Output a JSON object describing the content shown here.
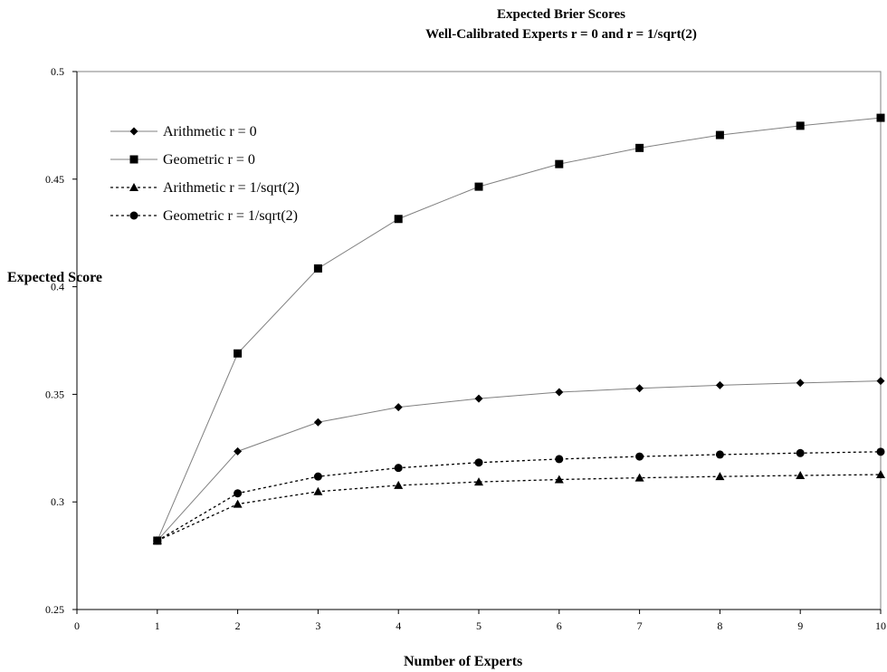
{
  "chart_data": {
    "type": "line",
    "title": "Expected Brier Scores",
    "subtitle": "Well-Calibrated Experts r = 0 and r = 1/sqrt(2)",
    "xlabel": "Number of Experts",
    "ylabel": "Expected Score",
    "xlim": [
      0,
      10
    ],
    "ylim": [
      0.25,
      0.5
    ],
    "x_ticks": [
      "0",
      "1",
      "2",
      "3",
      "4",
      "5",
      "6",
      "7",
      "8",
      "9",
      "10"
    ],
    "y_ticks": [
      "0.25",
      "0.3",
      "0.35",
      "0.4",
      "0.45",
      "0.5"
    ],
    "grid": false,
    "legend_position": "top-left",
    "x": [
      1,
      2,
      3,
      4,
      5,
      6,
      7,
      8,
      9,
      10
    ],
    "series": [
      {
        "name": "Arithmetic r = 0",
        "marker": "diamond",
        "style": "solid",
        "color": "#808080",
        "values": [
          0.282,
          0.3235,
          0.337,
          0.344,
          0.348,
          0.351,
          0.3528,
          0.3542,
          0.3553,
          0.3562
        ]
      },
      {
        "name": "Geometric r = 0",
        "marker": "square",
        "style": "solid",
        "color": "#808080",
        "values": [
          0.282,
          0.369,
          0.4085,
          0.4315,
          0.4465,
          0.457,
          0.4645,
          0.4705,
          0.4748,
          0.4785
        ]
      },
      {
        "name": "Arithmetic r = 1/sqrt(2)",
        "marker": "triangle",
        "style": "dotted",
        "color": "#000000",
        "values": [
          0.282,
          0.299,
          0.3048,
          0.3077,
          0.3093,
          0.3104,
          0.3112,
          0.3118,
          0.3123,
          0.3127
        ]
      },
      {
        "name": "Geometric r = 1/sqrt(2)",
        "marker": "circle",
        "style": "dotted",
        "color": "#000000",
        "values": [
          0.282,
          0.304,
          0.3118,
          0.3158,
          0.3183,
          0.3199,
          0.3211,
          0.322,
          0.3227,
          0.3233
        ]
      }
    ]
  }
}
